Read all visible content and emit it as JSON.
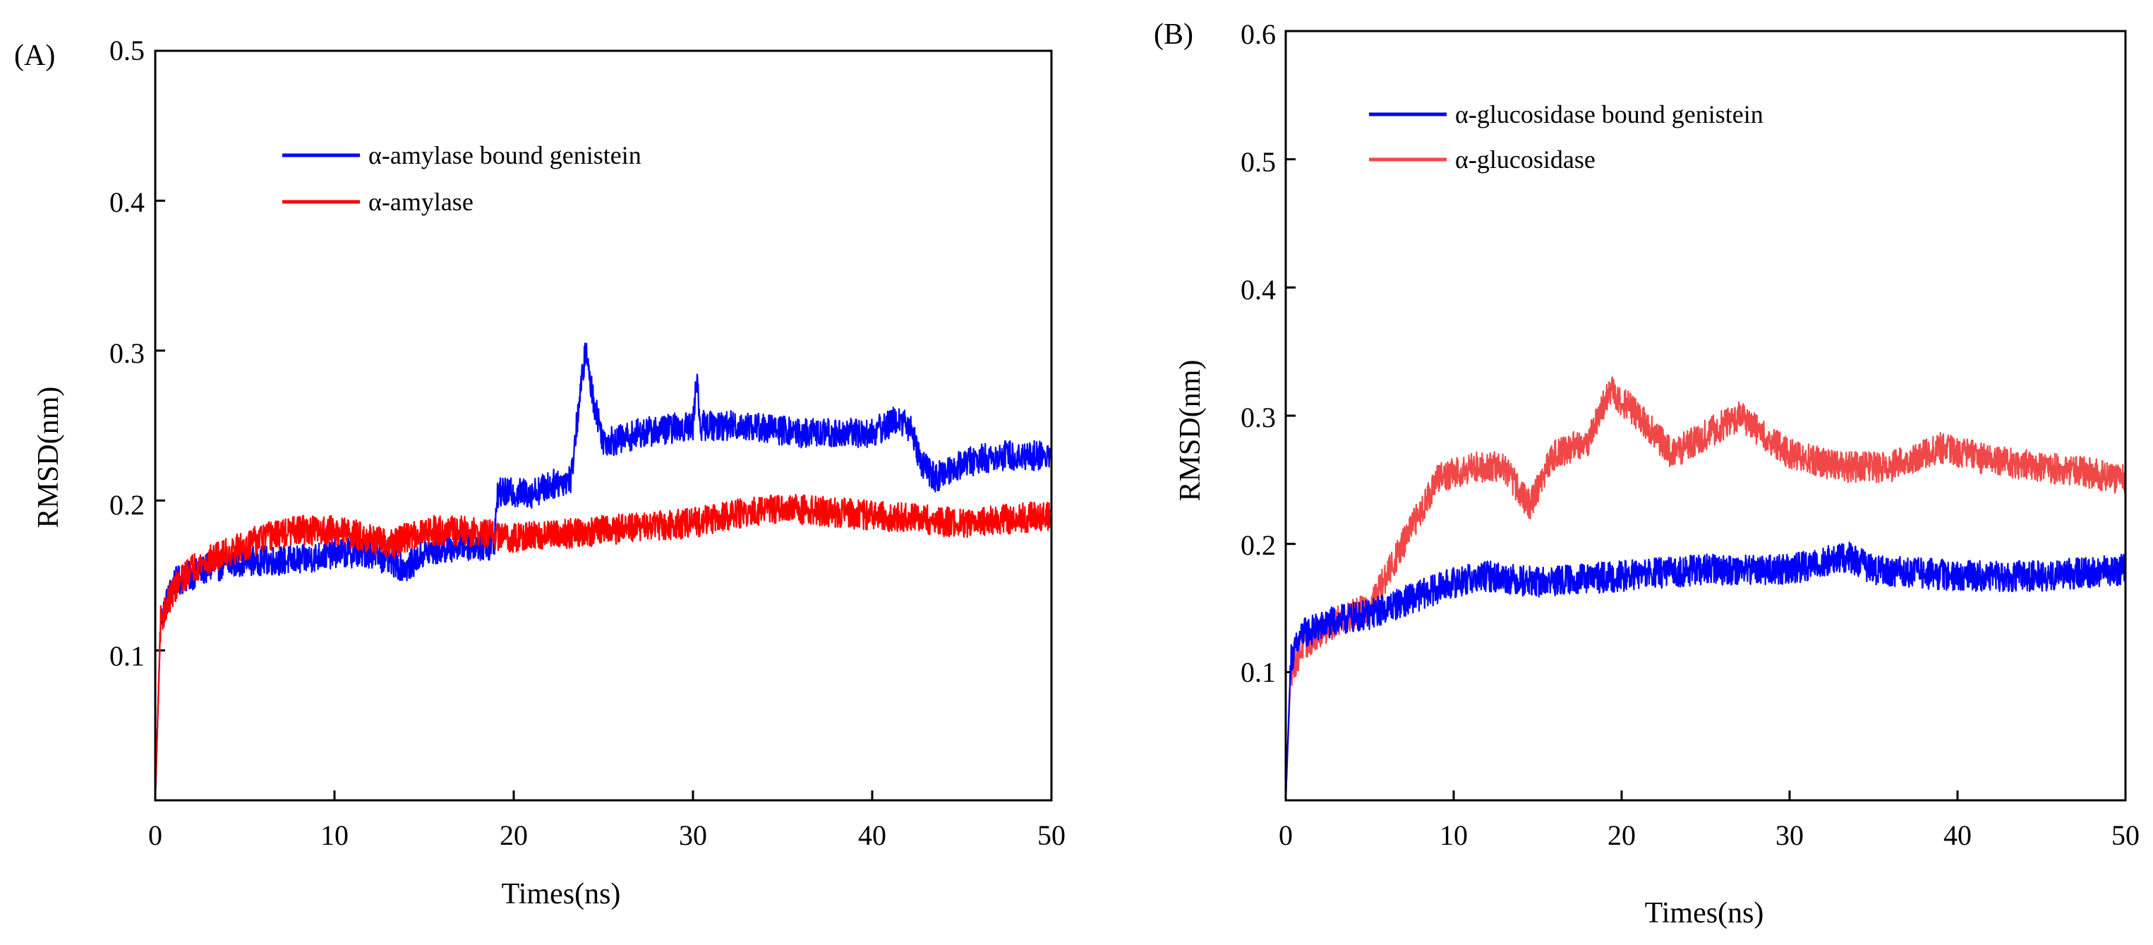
{
  "chart_data": [
    {
      "type": "line",
      "panel_label": "(A)",
      "xlabel": "Times(ns)",
      "ylabel": "RMSD(nm)",
      "xlim": [
        0,
        50
      ],
      "ylim": [
        0,
        0.5
      ],
      "xticks": [
        0,
        10,
        20,
        30,
        40,
        50
      ],
      "yticks": [
        0.1,
        0.2,
        0.3,
        0.4,
        0.5
      ],
      "xtick_labels": [
        "0",
        "10",
        "20",
        "30",
        "40",
        "50"
      ],
      "ytick_labels": [
        "0.1",
        "0.2",
        "0.3",
        "0.4",
        "0.5"
      ],
      "legend_position": "top-center",
      "noise": 0.01,
      "series": [
        {
          "name": "α-amylase bound genistein",
          "color": "#0000ff",
          "x": [
            0,
            0.3,
            1,
            2,
            3,
            5,
            8,
            10,
            12,
            13,
            14,
            15,
            17,
            18,
            18.9,
            19.1,
            21,
            22,
            23.2,
            23.6,
            24.0,
            24.4,
            25.0,
            25.8,
            27,
            30,
            30.2,
            30.4,
            33,
            36,
            40,
            41.5,
            42.3,
            42.7,
            43.5,
            45,
            47,
            50
          ],
          "values": [
            0.0,
            0.12,
            0.145,
            0.15,
            0.155,
            0.16,
            0.16,
            0.165,
            0.165,
            0.16,
            0.155,
            0.165,
            0.17,
            0.17,
            0.17,
            0.205,
            0.205,
            0.21,
            0.215,
            0.26,
            0.3,
            0.27,
            0.24,
            0.24,
            0.245,
            0.25,
            0.285,
            0.25,
            0.25,
            0.245,
            0.245,
            0.255,
            0.245,
            0.225,
            0.215,
            0.225,
            0.23,
            0.23
          ]
        },
        {
          "name": "α-amylase",
          "color": "#ff0000",
          "x": [
            0,
            0.3,
            1,
            2,
            4,
            6,
            8,
            10,
            12,
            13,
            14,
            15,
            17,
            20,
            25,
            30,
            32,
            35,
            40,
            45,
            50
          ],
          "values": [
            0.0,
            0.12,
            0.14,
            0.155,
            0.165,
            0.175,
            0.18,
            0.18,
            0.175,
            0.17,
            0.175,
            0.18,
            0.18,
            0.175,
            0.18,
            0.185,
            0.19,
            0.195,
            0.19,
            0.185,
            0.19
          ]
        }
      ]
    },
    {
      "type": "line",
      "panel_label": "(B)",
      "xlabel": "Times(ns)",
      "ylabel": "RMSD(nm)",
      "xlim": [
        0,
        50
      ],
      "ylim": [
        0,
        0.6
      ],
      "xticks": [
        0,
        10,
        20,
        30,
        40,
        50
      ],
      "yticks": [
        0.1,
        0.2,
        0.3,
        0.4,
        0.5,
        0.6
      ],
      "xtick_labels": [
        "0",
        "10",
        "20",
        "30",
        "40",
        "50"
      ],
      "ytick_labels": [
        "0.1",
        "0.2",
        "0.3",
        "0.4",
        "0.5",
        "0.6"
      ],
      "legend_position": "top-left",
      "noise": 0.012,
      "series": [
        {
          "name": "α-glucosidase bound genistein",
          "color": "#0000ff",
          "x": [
            0,
            0.3,
            1,
            3,
            5,
            7,
            10,
            12,
            15,
            20,
            25,
            30,
            33.5,
            35,
            40,
            45,
            50
          ],
          "values": [
            0.0,
            0.11,
            0.13,
            0.14,
            0.145,
            0.155,
            0.17,
            0.175,
            0.17,
            0.175,
            0.18,
            0.18,
            0.19,
            0.18,
            0.175,
            0.175,
            0.18
          ]
        },
        {
          "name": "α-glucosidase",
          "color": "#f04848",
          "x": [
            0,
            0.3,
            1,
            3,
            5,
            7,
            9,
            11,
            13,
            14.5,
            16,
            18,
            19.3,
            21,
            23,
            25,
            27,
            29,
            30,
            33,
            36,
            39,
            42,
            45,
            48,
            50
          ],
          "values": [
            0.0,
            0.1,
            0.12,
            0.14,
            0.15,
            0.2,
            0.25,
            0.26,
            0.26,
            0.23,
            0.27,
            0.28,
            0.32,
            0.3,
            0.27,
            0.285,
            0.3,
            0.28,
            0.27,
            0.26,
            0.26,
            0.275,
            0.265,
            0.26,
            0.255,
            0.25
          ]
        }
      ]
    }
  ]
}
